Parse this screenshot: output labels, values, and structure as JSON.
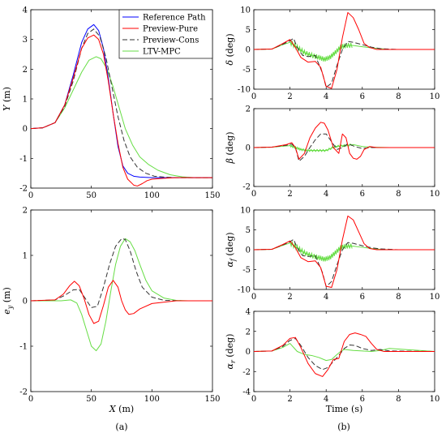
{
  "colors": {
    "reference": "#0000ff",
    "pure": "#ff0000",
    "cons": "#333333",
    "mpc": "#66dd44"
  },
  "captions": {
    "left": "(a)",
    "right": "(b)"
  },
  "chart_data": [
    {
      "type": "line",
      "xlabel": "",
      "ylabel": "Y (m)",
      "xlim": [
        0,
        150
      ],
      "ylim": [
        -2,
        4
      ],
      "xticks": [
        0,
        50,
        100,
        150
      ],
      "yticks": [
        -2,
        -1,
        0,
        1,
        2,
        3,
        4
      ],
      "legend": {
        "placement": "top-right",
        "entries": [
          "Reference Path",
          "Preview-Pure",
          "Preview-Cons",
          "LTV-MPC"
        ]
      },
      "series": [
        {
          "name": "Reference Path",
          "style": "reference",
          "x": [
            0,
            10,
            20,
            28,
            35,
            42,
            47,
            52,
            56,
            60,
            64,
            68,
            72,
            76,
            80,
            85,
            90,
            100,
            120,
            150
          ],
          "y": [
            0,
            0.03,
            0.2,
            0.8,
            1.8,
            2.9,
            3.35,
            3.5,
            3.3,
            2.7,
            1.7,
            0.5,
            -0.6,
            -1.25,
            -1.5,
            -1.6,
            -1.63,
            -1.65,
            -1.65,
            -1.65
          ]
        },
        {
          "name": "Preview-Pure",
          "style": "pure",
          "x": [
            0,
            10,
            20,
            28,
            35,
            42,
            47,
            52,
            56,
            60,
            64,
            68,
            72,
            76,
            80,
            85,
            88,
            92,
            96,
            100,
            110,
            120,
            150
          ],
          "y": [
            0,
            0.03,
            0.2,
            0.8,
            1.7,
            2.7,
            3.05,
            3.15,
            3.0,
            2.5,
            1.6,
            0.5,
            -0.5,
            -1.3,
            -1.7,
            -1.9,
            -1.93,
            -1.85,
            -1.75,
            -1.7,
            -1.67,
            -1.65,
            -1.65
          ]
        },
        {
          "name": "Preview-Cons",
          "style": "cons",
          "x": [
            0,
            10,
            20,
            28,
            35,
            42,
            47,
            52,
            57,
            62,
            67,
            72,
            77,
            82,
            88,
            95,
            102,
            110,
            120,
            150
          ],
          "y": [
            0,
            0.03,
            0.2,
            0.75,
            1.6,
            2.7,
            3.2,
            3.35,
            3.1,
            2.4,
            1.4,
            0.4,
            -0.4,
            -0.95,
            -1.3,
            -1.5,
            -1.6,
            -1.63,
            -1.65,
            -1.65
          ]
        },
        {
          "name": "LTV-MPC",
          "style": "mpc",
          "x": [
            0,
            10,
            20,
            28,
            35,
            42,
            48,
            54,
            58,
            63,
            68,
            73,
            78,
            84,
            90,
            97,
            105,
            115,
            125,
            135,
            150
          ],
          "y": [
            0,
            0.03,
            0.2,
            0.7,
            1.3,
            1.9,
            2.3,
            2.42,
            2.35,
            2.0,
            1.4,
            0.7,
            0.0,
            -0.55,
            -0.95,
            -1.2,
            -1.4,
            -1.55,
            -1.62,
            -1.65,
            -1.65
          ]
        }
      ]
    },
    {
      "type": "line",
      "xlabel": "X (m)",
      "ylabel": "e_y (m)",
      "xlim": [
        0,
        150
      ],
      "ylim": [
        -2,
        2
      ],
      "xticks": [
        0,
        50,
        100,
        150
      ],
      "yticks": [
        -2,
        -1,
        0,
        1,
        2
      ],
      "series": [
        {
          "name": "Preview-Pure",
          "style": "pure",
          "x": [
            0,
            20,
            27,
            32,
            36,
            40,
            44,
            48,
            52,
            56,
            60,
            64,
            68,
            72,
            75,
            78,
            81,
            85,
            90,
            100,
            120,
            150
          ],
          "y": [
            0,
            0.02,
            0.15,
            0.33,
            0.43,
            0.33,
            0.05,
            -0.3,
            -0.5,
            -0.45,
            -0.1,
            0.3,
            0.45,
            0.3,
            0.0,
            -0.2,
            -0.3,
            -0.28,
            -0.18,
            -0.06,
            0,
            0
          ]
        },
        {
          "name": "Preview-Cons",
          "style": "cons",
          "x": [
            0,
            20,
            28,
            35,
            40,
            45,
            50,
            55,
            60,
            65,
            70,
            75,
            78,
            82,
            87,
            92,
            100,
            110,
            125,
            150
          ],
          "y": [
            0,
            0.02,
            0.12,
            0.24,
            0.25,
            0.05,
            -0.15,
            -0.12,
            0.3,
            0.8,
            1.2,
            1.37,
            1.35,
            1.1,
            0.65,
            0.3,
            0.08,
            0.01,
            0,
            0
          ]
        },
        {
          "name": "LTV-MPC",
          "style": "mpc",
          "x": [
            0,
            25,
            33,
            38,
            42,
            46,
            50,
            54,
            58,
            62,
            66,
            70,
            74,
            78,
            82,
            86,
            90,
            95,
            100,
            110,
            120,
            130,
            150
          ],
          "y": [
            0,
            0,
            0.02,
            -0.05,
            -0.3,
            -0.65,
            -1.0,
            -1.1,
            -0.95,
            -0.45,
            0.2,
            0.8,
            1.2,
            1.37,
            1.3,
            1.1,
            0.8,
            0.45,
            0.22,
            0.06,
            0.01,
            0,
            0
          ]
        }
      ]
    },
    {
      "type": "line",
      "xlabel": "",
      "ylabel": "δ (deg)",
      "xlim": [
        0,
        10
      ],
      "ylim": [
        -10,
        10
      ],
      "xticks": [
        0,
        2,
        4,
        6,
        8,
        10
      ],
      "yticks": [
        -10,
        -5,
        0,
        5,
        10
      ],
      "series": [
        {
          "name": "Preview-Pure",
          "style": "pure",
          "x": [
            0,
            1,
            1.6,
            2.0,
            2.3,
            2.6,
            3.0,
            3.4,
            3.7,
            4.0,
            4.3,
            4.6,
            4.9,
            5.2,
            5.5,
            5.8,
            6.1,
            6.4,
            6.8,
            7.5,
            10
          ],
          "y": [
            0,
            0.1,
            1.5,
            2.5,
            0.5,
            -2.0,
            -3.2,
            -3.0,
            -4.5,
            -9.3,
            -9.8,
            -5.0,
            3.0,
            9.3,
            8.0,
            5.0,
            1.5,
            0.5,
            0,
            0,
            0
          ]
        },
        {
          "name": "Preview-Cons",
          "style": "cons",
          "x": [
            0,
            1,
            1.6,
            2.0,
            2.2,
            2.4,
            2.7,
            3.0,
            3.4,
            3.8,
            4.0,
            4.3,
            4.6,
            4.9,
            5.2,
            5.5,
            6.0,
            6.5,
            7.0,
            8.0,
            10
          ],
          "y": [
            0,
            0.1,
            1.3,
            2.2,
            2.8,
            0.5,
            -1.5,
            -1.8,
            -1.5,
            -6.0,
            -9.5,
            -8.5,
            -4.0,
            0.0,
            2.0,
            1.8,
            1.2,
            0.6,
            0.2,
            0,
            0
          ]
        },
        {
          "name": "LTV-MPC",
          "style": "mpc",
          "jitter": 1.2,
          "x": [
            0,
            1,
            1.6,
            2.0,
            2.4,
            2.8,
            3.2,
            3.6,
            3.9,
            4.2,
            4.5,
            4.8,
            5.1,
            5.5,
            6.0,
            6.5,
            7.0,
            7.5,
            10
          ],
          "y": [
            0,
            0.1,
            1.2,
            1.8,
            0.5,
            -0.8,
            -1.5,
            -2.0,
            -2.5,
            -2.0,
            -0.8,
            0.6,
            1.0,
            1.0,
            0.7,
            0.4,
            0.2,
            0,
            0
          ]
        }
      ]
    },
    {
      "type": "line",
      "xlabel": "",
      "ylabel": "β (deg)",
      "xlim": [
        0,
        10
      ],
      "ylim": [
        -2,
        2
      ],
      "xticks": [
        0,
        2,
        4,
        6,
        8,
        10
      ],
      "yticks": [
        -2,
        0,
        2
      ],
      "series": [
        {
          "name": "Preview-Pure",
          "style": "pure",
          "x": [
            0,
            1,
            1.8,
            2.1,
            2.3,
            2.5,
            2.8,
            3.1,
            3.4,
            3.7,
            3.9,
            4.1,
            4.4,
            4.7,
            4.9,
            5.1,
            5.3,
            5.5,
            5.7,
            5.9,
            6.1,
            6.4,
            6.8,
            10
          ],
          "y": [
            0,
            0.02,
            0.15,
            0.25,
            0.0,
            -0.6,
            -0.3,
            0.5,
            1.0,
            1.3,
            1.25,
            0.9,
            0.0,
            -0.3,
            0.7,
            0.5,
            -0.3,
            -0.55,
            -0.6,
            -0.45,
            -0.1,
            0.05,
            0,
            0
          ]
        },
        {
          "name": "Preview-Cons",
          "style": "cons",
          "x": [
            0,
            1,
            1.8,
            2.1,
            2.3,
            2.5,
            2.8,
            3.1,
            3.4,
            3.7,
            4.0,
            4.3,
            4.6,
            4.9,
            5.2,
            5.6,
            6.0,
            6.5,
            7.5,
            10
          ],
          "y": [
            0,
            0.02,
            0.12,
            0.18,
            0.0,
            -0.7,
            -0.45,
            0.0,
            0.4,
            0.7,
            0.7,
            0.3,
            -0.1,
            0.0,
            0.2,
            0.05,
            -0.05,
            0.0,
            0,
            0
          ]
        },
        {
          "name": "LTV-MPC",
          "style": "mpc",
          "jitter": 0.1,
          "x": [
            0,
            1,
            2.0,
            2.3,
            2.6,
            3.0,
            3.5,
            4.0,
            4.5,
            5.0,
            5.5,
            6.0,
            6.5,
            7.5,
            10
          ],
          "y": [
            0,
            0.02,
            0.1,
            0.0,
            -0.1,
            -0.15,
            -0.15,
            -0.15,
            0.05,
            0.1,
            0.15,
            0.05,
            0.02,
            0,
            0
          ]
        }
      ]
    },
    {
      "type": "line",
      "xlabel": "",
      "ylabel": "α_f (deg)",
      "xlim": [
        0,
        10
      ],
      "ylim": [
        -10,
        10
      ],
      "xticks": [
        0,
        2,
        4,
        6,
        8,
        10
      ],
      "yticks": [
        -10,
        -5,
        0,
        5,
        10
      ],
      "series": [
        {
          "name": "Preview-Pure",
          "style": "pure",
          "x": [
            0,
            1,
            1.6,
            2.0,
            2.3,
            2.6,
            3.0,
            3.4,
            3.7,
            4.0,
            4.3,
            4.6,
            4.9,
            5.2,
            5.5,
            5.8,
            6.1,
            6.4,
            6.8,
            7.5,
            10
          ],
          "y": [
            0,
            0.1,
            1.3,
            2.2,
            0.5,
            -2.0,
            -3.0,
            -2.8,
            -4.5,
            -9.2,
            -9.5,
            -5.0,
            2.5,
            8.5,
            7.5,
            4.5,
            1.5,
            0.3,
            0,
            0,
            0
          ]
        },
        {
          "name": "Preview-Cons",
          "style": "cons",
          "x": [
            0,
            1,
            1.6,
            2.0,
            2.2,
            2.4,
            2.7,
            3.0,
            3.4,
            3.8,
            4.0,
            4.3,
            4.6,
            4.9,
            5.2,
            5.5,
            6.0,
            6.5,
            7.0,
            8.0,
            10
          ],
          "y": [
            0,
            0.1,
            1.2,
            2.0,
            2.6,
            0.5,
            -1.5,
            -1.7,
            -1.5,
            -5.8,
            -9.3,
            -8.0,
            -3.8,
            0.0,
            1.8,
            1.6,
            1.0,
            0.5,
            0.2,
            0,
            0
          ]
        },
        {
          "name": "LTV-MPC",
          "style": "mpc",
          "jitter": 1.2,
          "x": [
            0,
            1,
            1.6,
            2.0,
            2.4,
            2.8,
            3.2,
            3.6,
            3.9,
            4.2,
            4.5,
            4.8,
            5.1,
            5.5,
            6.0,
            6.5,
            7.0,
            7.5,
            10
          ],
          "y": [
            0,
            0.1,
            1.1,
            1.7,
            0.5,
            -0.8,
            -1.5,
            -2.0,
            -2.4,
            -2.0,
            -0.8,
            0.5,
            0.9,
            0.9,
            0.6,
            0.3,
            0.1,
            0,
            0
          ]
        }
      ]
    },
    {
      "type": "line",
      "xlabel": "Time (s)",
      "ylabel": "α_r (deg)",
      "xlim": [
        0,
        10
      ],
      "ylim": [
        -4,
        4
      ],
      "xticks": [
        0,
        2,
        4,
        6,
        8,
        10
      ],
      "yticks": [
        -4,
        -2,
        0,
        2,
        4
      ],
      "series": [
        {
          "name": "Preview-Pure",
          "style": "pure",
          "x": [
            0,
            1,
            1.6,
            2.0,
            2.3,
            2.6,
            3.0,
            3.4,
            3.8,
            4.1,
            4.4,
            4.7,
            5.0,
            5.3,
            5.6,
            5.9,
            6.2,
            6.5,
            6.8,
            7.2,
            7.6,
            10
          ],
          "y": [
            0,
            0.05,
            0.6,
            1.3,
            1.4,
            0.4,
            -1.2,
            -2.2,
            -2.5,
            -1.8,
            -0.8,
            -0.7,
            1.0,
            1.7,
            1.85,
            1.7,
            1.5,
            0.8,
            0.2,
            0.0,
            0,
            0
          ]
        },
        {
          "name": "Preview-Cons",
          "style": "cons",
          "x": [
            0,
            1,
            1.6,
            2.0,
            2.3,
            2.6,
            3.0,
            3.4,
            3.8,
            4.1,
            4.4,
            4.7,
            5.0,
            5.3,
            5.6,
            6.0,
            6.5,
            7.0,
            7.5,
            10
          ],
          "y": [
            0,
            0.05,
            0.5,
            1.1,
            1.3,
            0.6,
            -0.6,
            -1.4,
            -1.8,
            -1.6,
            -1.0,
            -0.4,
            0.3,
            0.65,
            0.6,
            0.3,
            0.1,
            0.2,
            0.05,
            0
          ]
        },
        {
          "name": "LTV-MPC",
          "style": "mpc",
          "x": [
            0,
            1,
            1.6,
            2.0,
            2.4,
            2.8,
            3.2,
            3.6,
            4.0,
            4.3,
            4.6,
            4.8,
            5.0,
            5.5,
            6.0,
            6.5,
            7.0,
            7.5,
            10
          ],
          "y": [
            0,
            0.05,
            0.4,
            0.8,
            0.0,
            -0.3,
            -0.4,
            -0.6,
            -0.9,
            -0.8,
            -0.3,
            0.0,
            0.2,
            0.1,
            0.05,
            0.0,
            0.1,
            0.3,
            0
          ]
        }
      ]
    }
  ]
}
